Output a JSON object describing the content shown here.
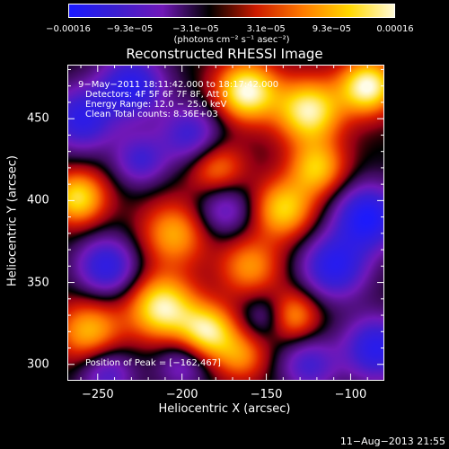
{
  "chart_data": {
    "type": "heatmap",
    "title": "Reconstructed RHESSI Image",
    "xlabel": "Heliocentric X (arcsec)",
    "ylabel": "Heliocentric Y (arcsec)",
    "xlim": [
      -268,
      -80
    ],
    "ylim": [
      290,
      483
    ],
    "x_ticks": [
      -250,
      -200,
      -150,
      -100
    ],
    "y_ticks": [
      300,
      350,
      400,
      450
    ],
    "x_tick_labels": [
      "−250",
      "−200",
      "−150",
      "−100"
    ],
    "y_tick_labels": [
      "300",
      "350",
      "400",
      "450"
    ],
    "colorbar": {
      "ticks": [
        "−0.00016",
        "−9.3e−05",
        "−3.1e−05",
        "3.1e−05",
        "9.3e−05",
        "0.00016"
      ],
      "unit_label": "(photons cm⁻² s⁻¹ asec⁻²)",
      "range": [
        -0.00016,
        0.00016
      ],
      "colors": [
        "#1a1aff",
        "#3b1fd0",
        "#7018b8",
        "#000000",
        "#cc1a00",
        "#ff7a00",
        "#ffd800",
        "#fffbe0"
      ]
    },
    "annotations": [
      "9−May−2011 18:11:42.000 to 18:17:42.000",
      "Detectors: 4F 5F 6F 7F 8F, Att 0",
      "Energy Range: 12.0 − 25.0 keV",
      "Clean     Total counts: 8.36E+03"
    ],
    "peak_label": "Position of Peak = [−162,467]",
    "image_sources": [
      {
        "x": -262,
        "y": 402,
        "v": 0.00013,
        "s": 12
      },
      {
        "x": -255,
        "y": 320,
        "v": 0.00011,
        "s": 14
      },
      {
        "x": -212,
        "y": 335,
        "v": 0.00015,
        "s": 14
      },
      {
        "x": -185,
        "y": 320,
        "v": 0.00014,
        "s": 12
      },
      {
        "x": -205,
        "y": 380,
        "v": 0.0001,
        "s": 14
      },
      {
        "x": -160,
        "y": 360,
        "v": 9e-05,
        "s": 13
      },
      {
        "x": -180,
        "y": 420,
        "v": 9e-05,
        "s": 12
      },
      {
        "x": -140,
        "y": 395,
        "v": 0.00012,
        "s": 13
      },
      {
        "x": -120,
        "y": 420,
        "v": 0.00011,
        "s": 12
      },
      {
        "x": -162,
        "y": 467,
        "v": 0.00016,
        "s": 13
      },
      {
        "x": -125,
        "y": 455,
        "v": 0.00015,
        "s": 14
      },
      {
        "x": -90,
        "y": 470,
        "v": 0.00016,
        "s": 12
      },
      {
        "x": -135,
        "y": 330,
        "v": 0.0001,
        "s": 11
      },
      {
        "x": -165,
        "y": 305,
        "v": 8e-05,
        "s": 11
      },
      {
        "x": -230,
        "y": 470,
        "v": -0.00013,
        "s": 14
      },
      {
        "x": -260,
        "y": 450,
        "v": -0.00012,
        "s": 14
      },
      {
        "x": -245,
        "y": 360,
        "v": -0.00012,
        "s": 13
      },
      {
        "x": -245,
        "y": 295,
        "v": -9e-05,
        "s": 12
      },
      {
        "x": -195,
        "y": 440,
        "v": -0.0001,
        "s": 13
      },
      {
        "x": -225,
        "y": 425,
        "v": -9e-05,
        "s": 11
      },
      {
        "x": -175,
        "y": 395,
        "v": -8e-05,
        "s": 12
      },
      {
        "x": -110,
        "y": 360,
        "v": -0.00013,
        "s": 14
      },
      {
        "x": -90,
        "y": 390,
        "v": -0.00015,
        "s": 14
      },
      {
        "x": -85,
        "y": 310,
        "v": -0.00013,
        "s": 14
      },
      {
        "x": -125,
        "y": 300,
        "v": -9e-05,
        "s": 12
      },
      {
        "x": -150,
        "y": 330,
        "v": -6e-05,
        "s": 10
      },
      {
        "x": -200,
        "y": 300,
        "v": -7e-05,
        "s": 11
      }
    ]
  },
  "timestamp": "11−Aug−2013 21:55"
}
